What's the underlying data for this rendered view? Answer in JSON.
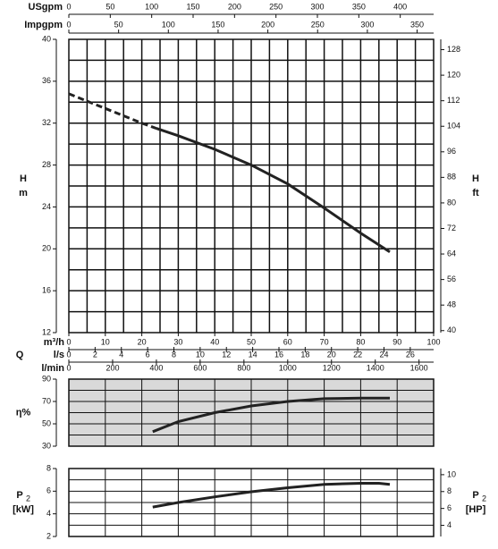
{
  "chart_data": [
    {
      "type": "line",
      "y_label": [
        "H",
        "m"
      ],
      "y2_label": [
        "H",
        "ft"
      ],
      "xlim": [
        0,
        100
      ],
      "xticks": [
        0,
        10,
        20,
        30,
        40,
        50,
        60,
        70,
        80,
        90,
        100
      ],
      "ylim": [
        12,
        40
      ],
      "yticks": [
        12,
        16,
        20,
        24,
        28,
        32,
        36,
        40
      ],
      "y2lim": [
        39.37,
        131.23
      ],
      "y2ticks": [
        40,
        48,
        56,
        64,
        72,
        80,
        88,
        96,
        104,
        112,
        120,
        128
      ],
      "grid": {
        "x_step": 5,
        "y_step": 2
      },
      "x_label": "m³/h",
      "q_label": "Q",
      "top_axes": [
        {
          "label": "USgpm",
          "lim": [
            0,
            440.29
          ],
          "ticks": [
            0,
            50,
            100,
            150,
            200,
            250,
            300,
            350,
            400
          ]
        },
        {
          "label": "Impgpm",
          "lim": [
            0,
            366.6
          ],
          "ticks": [
            0,
            50,
            100,
            150,
            200,
            250,
            300,
            350
          ]
        }
      ],
      "bottom_axes": [
        {
          "label": "l/s",
          "lim": [
            0,
            27.78
          ],
          "ticks": [
            0,
            2,
            4,
            6,
            8,
            10,
            12,
            14,
            16,
            18,
            20,
            22,
            24,
            26
          ]
        },
        {
          "label": "l/min",
          "lim": [
            0,
            1666.67
          ],
          "ticks": [
            0,
            200,
            400,
            600,
            800,
            1000,
            1200,
            1400,
            1600
          ]
        }
      ],
      "background": "#ffffff",
      "series": [
        {
          "style": "dashed",
          "color": "#222222",
          "x": [
            0,
            10,
            20,
            24
          ],
          "values": [
            34.8,
            33.4,
            32.0,
            31.5
          ]
        },
        {
          "style": "solid",
          "color": "#222222",
          "x": [
            24,
            30,
            40,
            50,
            60,
            70,
            80,
            88
          ],
          "values": [
            31.5,
            30.8,
            29.5,
            28.0,
            26.2,
            23.9,
            21.5,
            19.7
          ]
        }
      ]
    },
    {
      "type": "line",
      "y_label": [
        "η%"
      ],
      "xlim": [
        0,
        100
      ],
      "ylim": [
        30,
        90
      ],
      "yticks": [
        30,
        50,
        70,
        90
      ],
      "grid": {
        "x_step": 10,
        "y_step": 10
      },
      "background": "#d9d9d9",
      "series": [
        {
          "style": "solid",
          "color": "#222222",
          "x": [
            23,
            30,
            40,
            50,
            60,
            70,
            80,
            88
          ],
          "values": [
            43,
            52,
            60,
            66,
            70,
            72.5,
            73,
            73
          ]
        }
      ]
    },
    {
      "type": "line",
      "y_label": [
        "P",
        "2",
        "[kW]"
      ],
      "y2_label": [
        "P",
        "2",
        "[HP]"
      ],
      "xlim": [
        0,
        100
      ],
      "ylim": [
        2,
        8
      ],
      "yticks": [
        2,
        4,
        6,
        8
      ],
      "y2lim": [
        2.68,
        10.73
      ],
      "y2ticks": [
        4,
        6,
        8,
        10
      ],
      "grid": {
        "x_step": 10,
        "y_step": 1
      },
      "background": "#ffffff",
      "series": [
        {
          "style": "solid",
          "color": "#222222",
          "x": [
            23,
            30,
            40,
            50,
            60,
            70,
            80,
            85,
            88
          ],
          "values": [
            4.6,
            5.0,
            5.5,
            5.95,
            6.3,
            6.6,
            6.7,
            6.7,
            6.6
          ]
        }
      ]
    }
  ]
}
